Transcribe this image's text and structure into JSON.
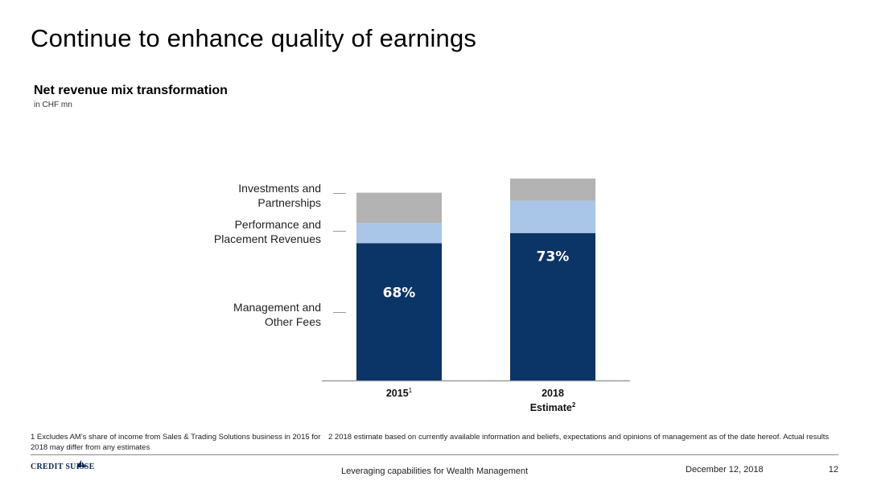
{
  "slide": {
    "title": "Continue to enhance quality of earnings",
    "subtitle": "Net revenue mix transformation",
    "unit": "in CHF mn"
  },
  "legend": {
    "investments_line1": "Investments and",
    "investments_line2": "Partnerships",
    "performance_line1": "Performance and",
    "performance_line2": "Placement Revenues",
    "management_line1": "Management and",
    "management_line2": "Other Fees"
  },
  "chart_data": {
    "type": "bar",
    "stacked": true,
    "categories": [
      "2015",
      "2018 Estimate"
    ],
    "category_superscripts": [
      "1",
      "2"
    ],
    "series": [
      {
        "name": "Management and Other Fees",
        "values": [
          68,
          73
        ],
        "data_labels": [
          "68%",
          "73%"
        ],
        "color": "#0b3467"
      },
      {
        "name": "Performance and Placement Revenues",
        "values": [
          10,
          16
        ],
        "color": "#a9c6e8"
      },
      {
        "name": "Investments and Partnerships",
        "values": [
          15,
          11
        ],
        "color": "#b3b3b3"
      }
    ]
  },
  "footnotes": {
    "note1": "1 Excludes AM's share of income from Sales & Trading Solutions business in 2015 for 2018 may differ from any estimates",
    "note2": "2 2018 estimate based on currently available information and beliefs, expectations and opinions of management as of the date hereof. Actual results"
  },
  "footer": {
    "logo_text": "CREDIT SUISSE",
    "center": "Leveraging capabilities for Wealth Management",
    "date": "December 12, 2018",
    "page": "12"
  }
}
